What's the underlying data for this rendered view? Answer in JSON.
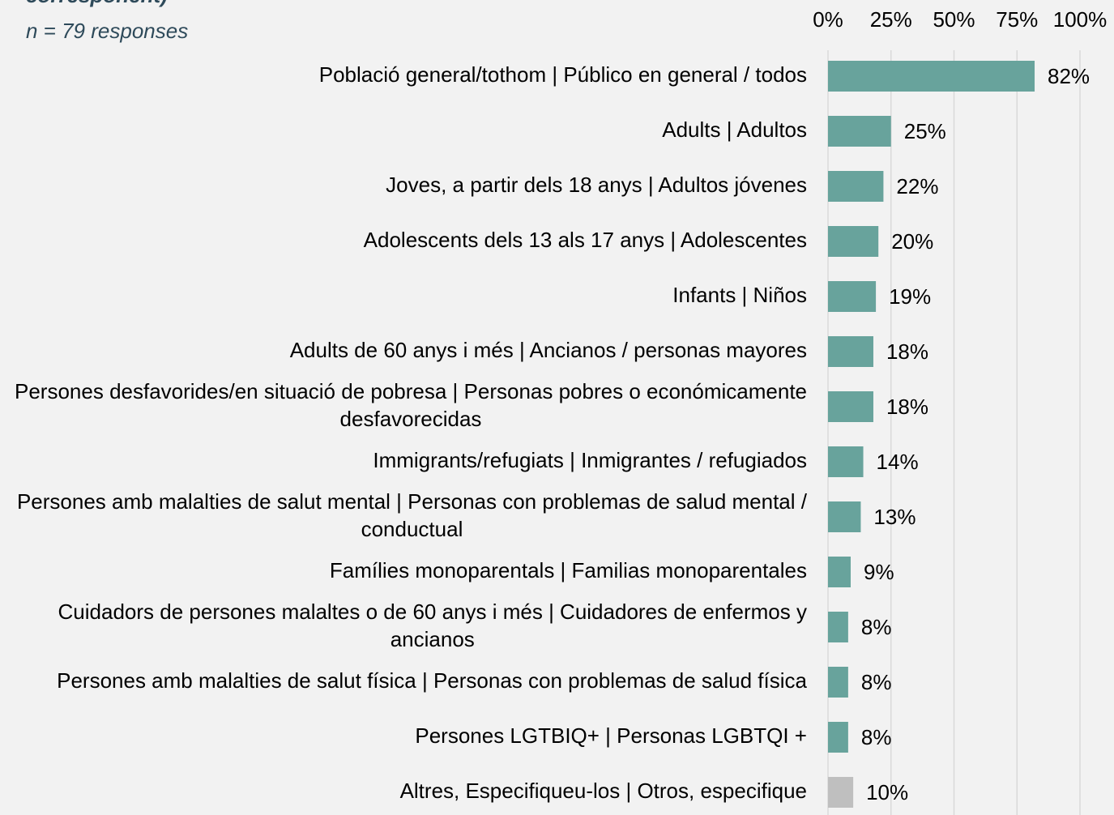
{
  "chart_data": {
    "type": "hbar",
    "title": "corresponent)",
    "subtitle": "n = 79 responses",
    "categories": [
      "Població general/tothom | Público en general / todos",
      "Adults | Adultos",
      "Joves, a partir dels 18 anys  | Adultos jóvenes",
      "Adolescents dels 13 als 17 anys | Adolescentes",
      "Infants | Niños",
      "Adults de 60 anys i més | Ancianos / personas mayores",
      "Persones desfavorides/en situació de pobresa | Personas pobres o económicamente desfavorecidas",
      "Immigrants/refugiats | Inmigrantes / refugiados",
      "Persones amb malalties de salut mental | Personas con problemas de salud mental / conductual",
      "Famílies monoparentals | Familias monoparentales",
      "Cuidadors de persones malaltes o de 60 anys i més | Cuidadores de enfermos y ancianos",
      "Persones amb malalties de salut física | Personas con problemas de salud física",
      "Persones LGTBIQ+ | Personas LGBTQI +",
      "Altres, Especifiqueu-los | Otros, especifique"
    ],
    "values": [
      82,
      25,
      22,
      20,
      19,
      18,
      18,
      14,
      13,
      9,
      8,
      8,
      8,
      10
    ],
    "value_labels": [
      "82%",
      "25%",
      "22%",
      "20%",
      "19%",
      "18%",
      "18%",
      "14%",
      "13%",
      "9%",
      "8%",
      "8%",
      "8%",
      "10%"
    ],
    "colors": [
      "#68a39c",
      "#68a39c",
      "#68a39c",
      "#68a39c",
      "#68a39c",
      "#68a39c",
      "#68a39c",
      "#68a39c",
      "#68a39c",
      "#68a39c",
      "#68a39c",
      "#68a39c",
      "#68a39c",
      "#bfbfbf"
    ],
    "xlim": [
      0,
      100
    ],
    "xticks": [
      {
        "value": 0,
        "label": "0%"
      },
      {
        "value": 25,
        "label": "25%"
      },
      {
        "value": 50,
        "label": "50%"
      },
      {
        "value": 75,
        "label": "75%"
      },
      {
        "value": 100,
        "label": "100%"
      }
    ],
    "grid": true
  }
}
